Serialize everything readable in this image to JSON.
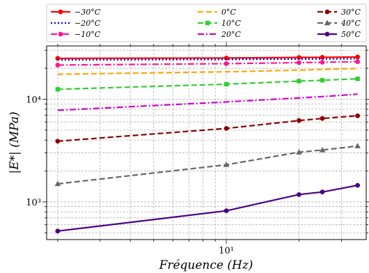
{
  "chart_data": {
    "type": "line",
    "xlabel": "Fréquence (Hz)",
    "ylabel": "|E*| (MPa)",
    "x_scale": "log",
    "y_scale": "log",
    "xlim": [
      1.8,
      38
    ],
    "ylim": [
      430,
      33000
    ],
    "x_ticks": [
      {
        "value": 10,
        "label": "10¹"
      }
    ],
    "y_ticks": [
      {
        "value": 1000,
        "label": "10³"
      },
      {
        "value": 10000,
        "label": "10⁴"
      }
    ],
    "grid": true,
    "legend_position": "top",
    "series": [
      {
        "name": "−30°C",
        "color": "#ff0000",
        "style": "solid",
        "marker": "circle",
        "x": [
          2,
          10,
          20,
          25,
          35
        ],
        "y": [
          25000,
          25200,
          25500,
          25600,
          25800
        ]
      },
      {
        "name": "−20°C",
        "color": "#0000cc",
        "style": "dotted",
        "marker": "none",
        "x": [
          2,
          10,
          20,
          25,
          35
        ],
        "y": [
          24200,
          24400,
          24600,
          24700,
          24800
        ]
      },
      {
        "name": "−10°C",
        "color": "#ff1493",
        "style": "dashdot",
        "marker": "circle",
        "x": [
          2,
          10,
          20,
          25,
          35
        ],
        "y": [
          21500,
          22200,
          22700,
          22900,
          23200
        ]
      },
      {
        "name": "0°C",
        "color": "#ffa500",
        "style": "dashed",
        "marker": "none",
        "x": [
          2,
          10,
          20,
          25,
          35
        ],
        "y": [
          17500,
          18500,
          19200,
          19500,
          19900
        ]
      },
      {
        "name": "10°C",
        "color": "#32cd32",
        "style": "dashed",
        "marker": "square",
        "x": [
          2,
          10,
          20,
          25,
          35
        ],
        "y": [
          12500,
          14000,
          15000,
          15300,
          15800
        ]
      },
      {
        "name": "20°C",
        "color": "#cc00cc",
        "style": "dashdot",
        "marker": "none",
        "x": [
          2,
          10,
          20,
          25,
          35
        ],
        "y": [
          7800,
          9400,
          10300,
          10600,
          11200
        ]
      },
      {
        "name": "30°C",
        "color": "#8b0000",
        "style": "dashed",
        "marker": "circle",
        "x": [
          2,
          10,
          20,
          25,
          35
        ],
        "y": [
          3900,
          5200,
          6200,
          6500,
          6900
        ]
      },
      {
        "name": "40°C",
        "color": "#666666",
        "style": "dashed",
        "marker": "triangle",
        "x": [
          2,
          10,
          20,
          25,
          35
        ],
        "y": [
          1500,
          2300,
          3050,
          3200,
          3500
        ]
      },
      {
        "name": "50°C",
        "color": "#4b0082",
        "style": "solid",
        "marker": "circle",
        "x": [
          2,
          10,
          20,
          25,
          35
        ],
        "y": [
          520,
          820,
          1180,
          1250,
          1450
        ]
      }
    ]
  }
}
